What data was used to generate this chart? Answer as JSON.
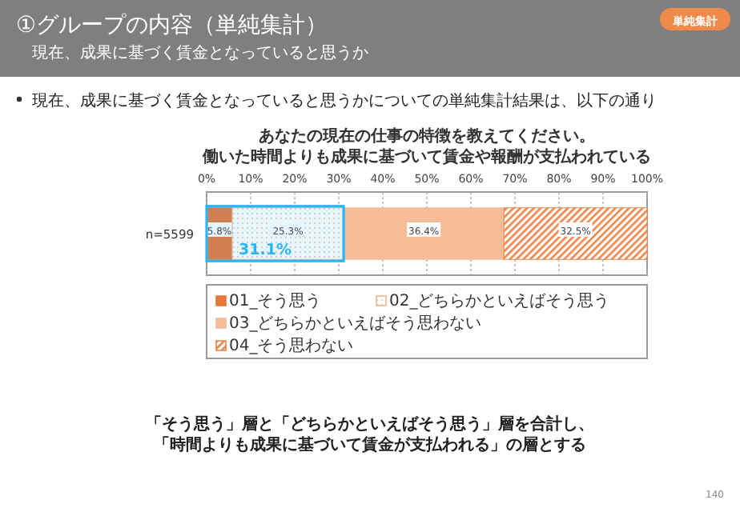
{
  "chart_data": {
    "type": "bar",
    "orientation": "horizontal",
    "stacked": true,
    "title": "あなたの現在の仕事の特徴を教えてください。",
    "subtitle": "働いた時間よりも成果に基づいて賃金や報酬が支払われている",
    "categories": [
      "n=5599"
    ],
    "series": [
      {
        "name": "01_そう思う",
        "color": "#e8793a",
        "values": [
          5.8
        ],
        "value_labels": [
          "5.8%"
        ]
      },
      {
        "name": "02_どちらかといえばそう思う",
        "color": "#f2b58c",
        "values": [
          25.3
        ],
        "value_labels": [
          "25.3%"
        ]
      },
      {
        "name": "03_どちらかといえばそう思わない",
        "color": "#f5bd97",
        "values": [
          36.4
        ],
        "value_labels": [
          "36.4%"
        ]
      },
      {
        "name": "04_そう思わない",
        "color": "#ee8446",
        "values": [
          32.5
        ],
        "value_labels": [
          "32.5%"
        ]
      }
    ],
    "xlim": [
      0,
      100
    ],
    "xticks": [
      {
        "value": 0,
        "label": "0%"
      },
      {
        "value": 10,
        "label": "10%"
      },
      {
        "value": 20,
        "label": "20%"
      },
      {
        "value": 30,
        "label": "30%"
      },
      {
        "value": 40,
        "label": "40%"
      },
      {
        "value": 50,
        "label": "50%"
      },
      {
        "value": 60,
        "label": "60%"
      },
      {
        "value": 70,
        "label": "70%"
      },
      {
        "value": 80,
        "label": "80%"
      },
      {
        "value": 90,
        "label": "90%"
      },
      {
        "value": 100,
        "label": "100%"
      }
    ],
    "grid": "x",
    "legend": "bottom",
    "bands": [
      {
        "axis": "x",
        "from": 0,
        "to": 31.1,
        "label": "31.1%",
        "color": "#29b6f6"
      }
    ],
    "annotations": [
      "①グループの内容（単純集計）",
      "現在、成果に基づく賃金となっていると思うか",
      "単純集計",
      "現在、成果に基づく賃金となっていると思うかについての単純集計結果は、以下の通り",
      "「そう思う」層と「どちらかといえばそう思う」層を合計し、「時間よりも成果に基づいて賃金が支払われる」の層とする",
      "140"
    ]
  }
}
